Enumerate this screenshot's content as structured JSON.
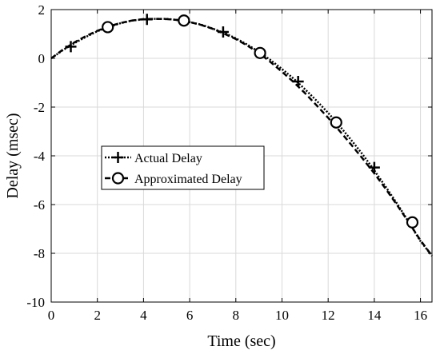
{
  "chart_data": {
    "type": "line",
    "title": "",
    "xlabel": "Time (sec)",
    "ylabel": "Delay (msec)",
    "xlim": [
      0,
      16.5
    ],
    "ylim": [
      -10,
      2
    ],
    "xticks": [
      0,
      2,
      4,
      6,
      8,
      10,
      12,
      14,
      16
    ],
    "yticks": [
      2,
      0,
      -2,
      -4,
      -6,
      -8,
      -10
    ],
    "grid": true,
    "legend_position": "center-left",
    "series": [
      {
        "name": "Actual Delay",
        "line_style": "dotted",
        "marker": "plus",
        "color": "#000000",
        "x": [
          0,
          0.5,
          1,
          1.5,
          2,
          2.5,
          3,
          3.5,
          4,
          4.5,
          5,
          5.5,
          6,
          6.5,
          7,
          7.5,
          8,
          8.5,
          9,
          9.5,
          10,
          10.5,
          11,
          11.5,
          12,
          12.5,
          13,
          13.5,
          14,
          14.5,
          15,
          15.5,
          16,
          16.5
        ],
        "y": [
          0,
          0.33,
          0.62,
          0.88,
          1.11,
          1.29,
          1.44,
          1.55,
          1.6,
          1.62,
          1.62,
          1.57,
          1.49,
          1.38,
          1.22,
          1.04,
          0.82,
          0.56,
          0.27,
          -0.07,
          -0.44,
          -0.83,
          -1.27,
          -1.74,
          -2.24,
          -2.78,
          -3.35,
          -3.95,
          -4.6,
          -5.28,
          -5.98,
          -6.73,
          -7.5,
          -8.1
        ],
        "marker_points": [
          [
            0.85,
            0.48
          ],
          [
            4.15,
            1.6
          ],
          [
            7.45,
            1.08
          ],
          [
            10.7,
            -0.95
          ],
          [
            14.0,
            -4.48
          ]
        ]
      },
      {
        "name": "Approximated Delay",
        "line_style": "dashed",
        "marker": "circle",
        "color": "#000000",
        "x": [
          0,
          0.5,
          1,
          1.5,
          2,
          2.5,
          3,
          3.5,
          4,
          4.5,
          5,
          5.5,
          6,
          6.5,
          7,
          7.5,
          8,
          8.5,
          9,
          9.5,
          10,
          10.5,
          11,
          11.5,
          12,
          12.5,
          13,
          13.5,
          14,
          14.5,
          15,
          15.5,
          16,
          16.5
        ],
        "y": [
          0,
          0.35,
          0.65,
          0.91,
          1.13,
          1.31,
          1.45,
          1.55,
          1.61,
          1.62,
          1.61,
          1.57,
          1.49,
          1.37,
          1.21,
          1.01,
          0.79,
          0.52,
          0.22,
          -0.15,
          -0.55,
          -0.97,
          -1.43,
          -1.93,
          -2.44,
          -2.98,
          -3.54,
          -4.12,
          -4.72,
          -5.36,
          -6.04,
          -6.74,
          -7.47,
          -8.1
        ],
        "marker_points": [
          [
            2.45,
            1.28
          ],
          [
            5.75,
            1.55
          ],
          [
            9.05,
            0.22
          ],
          [
            12.35,
            -2.63
          ],
          [
            15.65,
            -6.73
          ]
        ]
      }
    ]
  }
}
